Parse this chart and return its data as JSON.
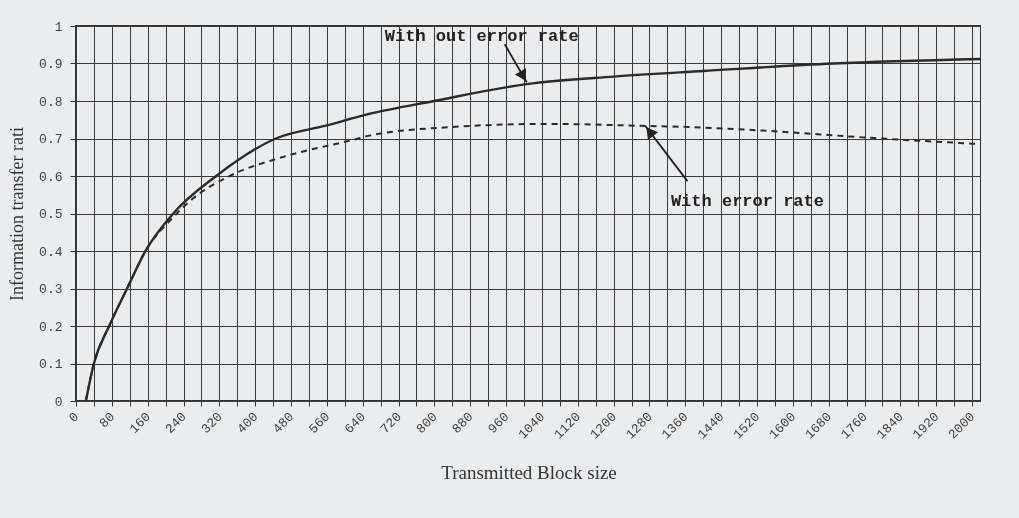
{
  "chart_data": {
    "type": "line",
    "xlabel": "Transmitted Block size",
    "ylabel": "Information transfer rati",
    "xlim": [
      0,
      2020
    ],
    "ylim": [
      0,
      1
    ],
    "xticks": [
      0,
      {
        "value": 40,
        "label": null
      },
      80,
      {
        "value": 120,
        "label": null
      },
      160,
      {
        "value": 200,
        "label": null
      },
      240,
      {
        "value": 280,
        "label": null
      },
      320,
      {
        "value": 360,
        "label": null
      },
      400,
      {
        "value": 440,
        "label": null
      },
      480,
      {
        "value": 520,
        "label": null
      },
      560,
      {
        "value": 600,
        "label": null
      },
      640,
      {
        "value": 680,
        "label": null
      },
      720,
      {
        "value": 760,
        "label": null
      },
      800,
      {
        "value": 840,
        "label": null
      },
      880,
      {
        "value": 920,
        "label": null
      },
      960,
      {
        "value": 1000,
        "label": null
      },
      1040,
      {
        "value": 1080,
        "label": null
      },
      1120,
      {
        "value": 1160,
        "label": null
      },
      1200,
      {
        "value": 1240,
        "label": null
      },
      1280,
      {
        "value": 1320,
        "label": null
      },
      1360,
      {
        "value": 1400,
        "label": null
      },
      1440,
      {
        "value": 1480,
        "label": null
      },
      1520,
      {
        "value": 1560,
        "label": null
      },
      1600,
      {
        "value": 1640,
        "label": null
      },
      1680,
      {
        "value": 1720,
        "label": null
      },
      1760,
      {
        "value": 1800,
        "label": null
      },
      1840,
      {
        "value": 1880,
        "label": null
      },
      1920,
      {
        "value": 1960,
        "label": null
      },
      2000
    ],
    "yticks": [
      0,
      0.1,
      0.2,
      0.3,
      0.4,
      0.5,
      0.6,
      0.7,
      0.8,
      0.9,
      1
    ],
    "grid": true,
    "series": [
      {
        "color": "#2a2a2a",
        "line_style": "solid",
        "x": [
          22,
          40,
          74,
          114,
          155,
          217,
          313,
          446,
          560,
          652,
          799,
          1006,
          1200,
          1400,
          1690,
          2020
        ],
        "values": [
          0,
          0.1,
          0.2,
          0.3,
          0.4,
          0.5,
          0.6,
          0.7,
          0.735,
          0.765,
          0.8,
          0.845,
          0.865,
          0.88,
          0.9,
          0.912
        ]
      },
      {
        "color": "#2a2a2a",
        "line_style": "dashed",
        "x": [
          22,
          40,
          74,
          114,
          155,
          217,
          261,
          343,
          460,
          630,
          652,
          829,
          1050,
          1256,
          1359,
          1536,
          1757,
          2020
        ],
        "values": [
          0,
          0.1,
          0.2,
          0.3,
          0.4,
          0.49,
          0.54,
          0.6,
          0.65,
          0.7,
          0.707,
          0.73,
          0.739,
          0.734,
          0.731,
          0.721,
          0.703,
          0.685
        ]
      }
    ],
    "annotations": [
      {
        "text": "With out error rate",
        "x": 1006,
        "y": 0.85
      },
      {
        "text": "With error rate",
        "x": 1271,
        "y": 0.733
      }
    ]
  }
}
